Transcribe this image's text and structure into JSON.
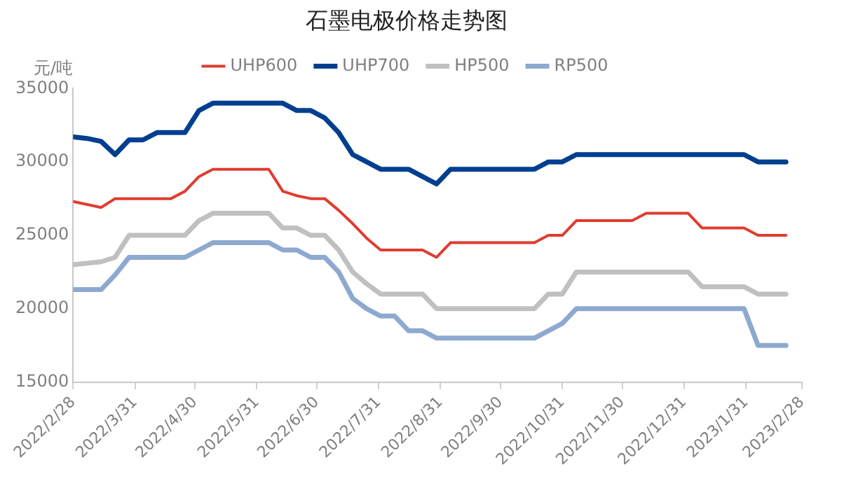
{
  "chart_data": {
    "type": "line",
    "title": "石墨电极价格走势图",
    "ylabel": "元/吨",
    "x": [
      "2022-02-28",
      "2022-03-07",
      "2022-03-14",
      "2022-03-21",
      "2022-03-28",
      "2022-04-04",
      "2022-04-11",
      "2022-04-18",
      "2022-04-25",
      "2022-05-02",
      "2022-05-09",
      "2022-05-16",
      "2022-05-23",
      "2022-05-30",
      "2022-06-06",
      "2022-06-13",
      "2022-06-20",
      "2022-06-27",
      "2022-07-04",
      "2022-07-11",
      "2022-07-18",
      "2022-07-25",
      "2022-08-01",
      "2022-08-08",
      "2022-08-15",
      "2022-08-22",
      "2022-08-29",
      "2022-09-05",
      "2022-09-12",
      "2022-09-19",
      "2022-09-26",
      "2022-10-03",
      "2022-10-10",
      "2022-10-17",
      "2022-10-24",
      "2022-10-31",
      "2022-11-07",
      "2022-11-14",
      "2022-11-21",
      "2022-11-28",
      "2022-12-05",
      "2022-12-12",
      "2022-12-19",
      "2022-12-26",
      "2023-01-02",
      "2023-01-09",
      "2023-01-16",
      "2023-01-23",
      "2023-01-30",
      "2023-02-06",
      "2023-02-13",
      "2023-02-20"
    ],
    "series": [
      {
        "name": "UHP600",
        "color": "#e03c31",
        "values": [
          27300,
          27100,
          26900,
          27500,
          27500,
          27500,
          27500,
          27500,
          28000,
          29000,
          29500,
          29500,
          29500,
          29500,
          29500,
          28000,
          27700,
          27500,
          27500,
          26700,
          25800,
          24800,
          24000,
          24000,
          24000,
          24000,
          23500,
          24500,
          24500,
          24500,
          24500,
          24500,
          24500,
          24500,
          25000,
          25000,
          26000,
          26000,
          26000,
          26000,
          26000,
          26500,
          26500,
          26500,
          26500,
          25500,
          25500,
          25500,
          25500,
          25000,
          25000,
          25000
        ]
      },
      {
        "name": "UHP700",
        "color": "#003f8f",
        "values": [
          31700,
          31600,
          31400,
          30500,
          31500,
          31500,
          32000,
          32000,
          32000,
          33500,
          34000,
          34000,
          34000,
          34000,
          34000,
          34000,
          33500,
          33500,
          33000,
          32000,
          30500,
          30000,
          29500,
          29500,
          29500,
          29000,
          28500,
          29500,
          29500,
          29500,
          29500,
          29500,
          29500,
          29500,
          30000,
          30000,
          30500,
          30500,
          30500,
          30500,
          30500,
          30500,
          30500,
          30500,
          30500,
          30500,
          30500,
          30500,
          30500,
          30000,
          30000,
          30000
        ]
      },
      {
        "name": "HP500",
        "color": "#c0c0c0",
        "values": [
          23000,
          23100,
          23200,
          23500,
          25000,
          25000,
          25000,
          25000,
          25000,
          26000,
          26500,
          26500,
          26500,
          26500,
          26500,
          25500,
          25500,
          25000,
          25000,
          24000,
          22500,
          21700,
          21000,
          21000,
          21000,
          21000,
          20000,
          20000,
          20000,
          20000,
          20000,
          20000,
          20000,
          20000,
          21000,
          21000,
          22500,
          22500,
          22500,
          22500,
          22500,
          22500,
          22500,
          22500,
          22500,
          21500,
          21500,
          21500,
          21500,
          21000,
          21000,
          21000
        ]
      },
      {
        "name": "RP500",
        "color": "#8ea9d0",
        "values": [
          21300,
          21300,
          21300,
          22300,
          23500,
          23500,
          23500,
          23500,
          23500,
          24000,
          24500,
          24500,
          24500,
          24500,
          24500,
          24000,
          24000,
          23500,
          23500,
          22500,
          20700,
          20000,
          19500,
          19500,
          18500,
          18500,
          18000,
          18000,
          18000,
          18000,
          18000,
          18000,
          18000,
          18000,
          18500,
          19000,
          20000,
          20000,
          20000,
          20000,
          20000,
          20000,
          20000,
          20000,
          20000,
          20000,
          20000,
          20000,
          20000,
          17500,
          17500,
          17500
        ]
      }
    ],
    "xlim": [
      "2022-02-28",
      "2023-02-28"
    ],
    "xticks": [
      {
        "value": "2022-02-28",
        "label": "2022/2/28"
      },
      {
        "value": "2022-03-31",
        "label": "2022/3/31"
      },
      {
        "value": "2022-04-30",
        "label": "2022/4/30"
      },
      {
        "value": "2022-05-31",
        "label": "2022/5/31"
      },
      {
        "value": "2022-06-30",
        "label": "2022/6/30"
      },
      {
        "value": "2022-07-31",
        "label": "2022/7/31"
      },
      {
        "value": "2022-08-31",
        "label": "2022/8/31"
      },
      {
        "value": "2022-09-30",
        "label": "2022/9/30"
      },
      {
        "value": "2022-10-31",
        "label": "2022/10/31"
      },
      {
        "value": "2022-11-30",
        "label": "2022/11/30"
      },
      {
        "value": "2022-12-31",
        "label": "2022/12/31"
      },
      {
        "value": "2023-01-31",
        "label": "2023/1/31"
      },
      {
        "value": "2023-02-28",
        "label": "2023/2/28"
      }
    ],
    "ylim": [
      15000,
      35000
    ],
    "yticks": [
      15000,
      20000,
      25000,
      30000,
      35000
    ],
    "grid": false,
    "legend": "top",
    "marker": "none",
    "line_style": "solid"
  }
}
